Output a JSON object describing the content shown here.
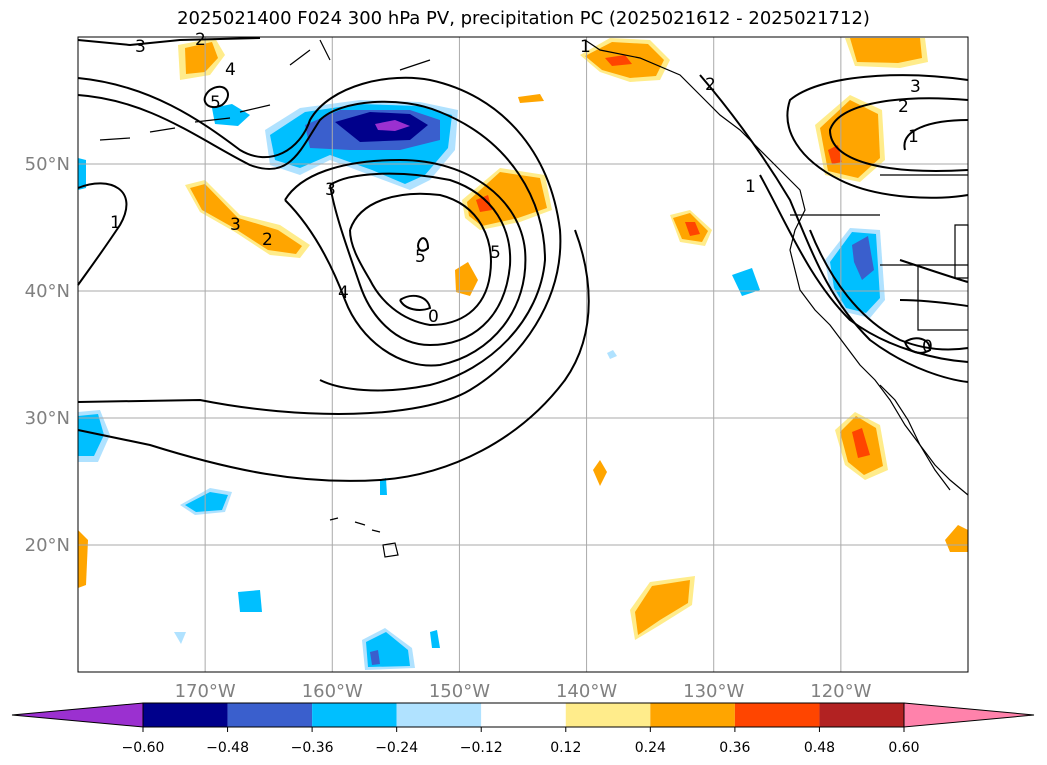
{
  "title": "2025021400 F024 300 hPa PV, precipitation PC (2025021612 - 2025021712)",
  "map": {
    "lat_labels": [
      "50°N",
      "40°N",
      "30°N",
      "20°N"
    ],
    "lat_values": [
      50,
      40,
      30,
      20
    ],
    "lon_labels": [
      "170°W",
      "160°W",
      "150°W",
      "140°W",
      "130°W",
      "120°W"
    ],
    "lon_values": [
      -170,
      -160,
      -150,
      -140,
      -130,
      -120
    ],
    "extent": {
      "lon_min": -180,
      "lon_max": -110,
      "lat_min": 10,
      "lat_max": 60
    },
    "contour_labels": [
      "3",
      "4",
      "5",
      "3",
      "2",
      "1",
      "2",
      "3",
      "5",
      "4",
      "5",
      "0",
      "2",
      "1",
      "3",
      "2",
      "1",
      "1",
      "0"
    ]
  },
  "colorbar": {
    "ticks": [
      "−0.60",
      "−0.48",
      "−0.36",
      "−0.24",
      "−0.12",
      "0.12",
      "0.24",
      "0.36",
      "0.48",
      "0.60"
    ],
    "colors": {
      "under": "#9b30d0",
      "bins": [
        "#00008b",
        "#3a5fcd",
        "#00bfff",
        "#b0e2ff",
        "#ffffff",
        "#ffec8b",
        "#ffa500",
        "#ff4500",
        "#b22222",
        "#ff82ab"
      ],
      "over": "#ff82ab"
    }
  },
  "colors": {
    "grid": "#aaaaaa",
    "contour": "#000000",
    "coast": "#000000"
  }
}
